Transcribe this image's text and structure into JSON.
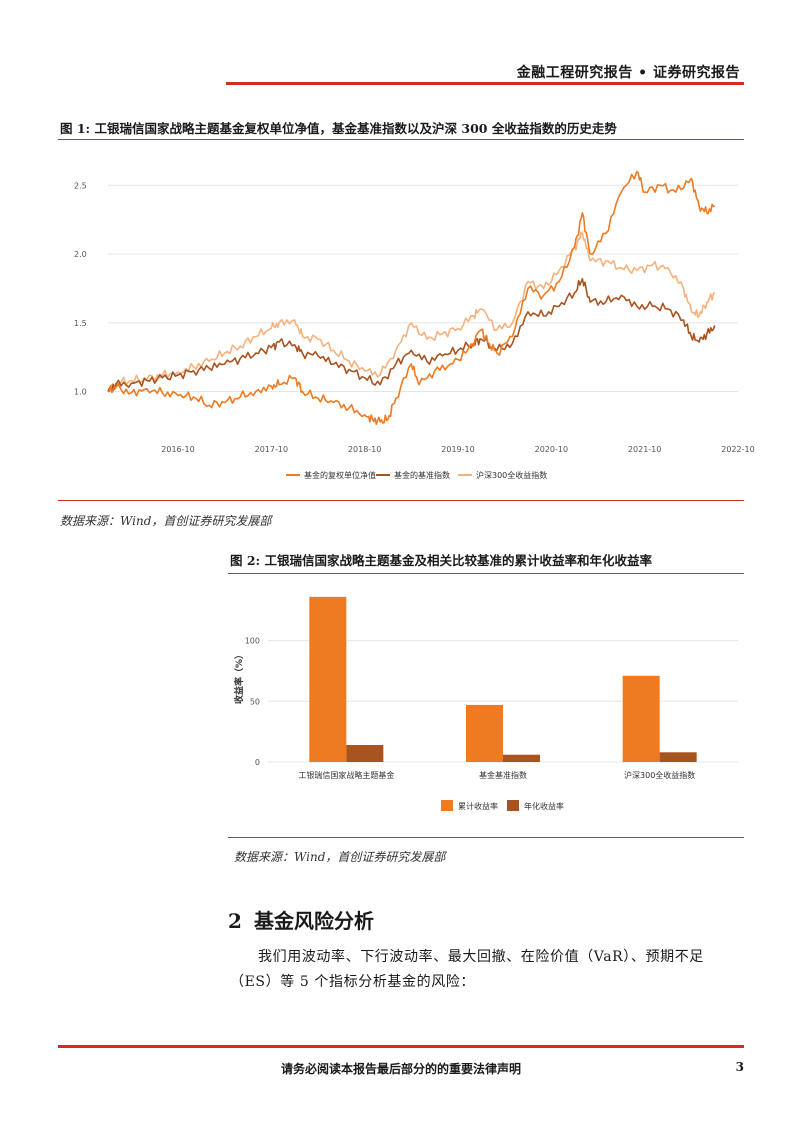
{
  "header": {
    "title": "金融工程研究报告 • 证券研究报告"
  },
  "figure1": {
    "title": "图 1: 工银瑞信国家战略主题基金复权单位净值，基金基准指数以及沪深 300 全收益指数的历史走势",
    "source": "数据来源：Wind，首创证券研究发展部"
  },
  "figure2": {
    "title": "图 2: 工银瑞信国家战略主题基金及相关比较基准的累计收益率和年化收益率",
    "source": "数据来源：Wind，首创证券研究发展部"
  },
  "chart_data": [
    {
      "type": "line",
      "title": "",
      "xlabel": "",
      "ylabel": "",
      "x_ticks": [
        "2016-10",
        "2017-10",
        "2018-10",
        "2019-10",
        "2020-10",
        "2021-10",
        "2022-10"
      ],
      "y_ticks": [
        1.0,
        1.5,
        2.0,
        2.5
      ],
      "ylim": [
        0.72,
        2.72
      ],
      "xlim": [
        "2016-01",
        "2022-10"
      ],
      "grid": true,
      "legend": "bottom",
      "series": [
        {
          "name": "基金的复权单位净值",
          "color": "#ee7a22",
          "points": [
            [
              "2016-01",
              1.0
            ],
            [
              "2016-02",
              1.03
            ],
            [
              "2016-04",
              0.99
            ],
            [
              "2016-06",
              1.02
            ],
            [
              "2016-08",
              0.99
            ],
            [
              "2016-10",
              0.97
            ],
            [
              "2016-12",
              0.96
            ],
            [
              "2017-02",
              0.9
            ],
            [
              "2017-04",
              0.92
            ],
            [
              "2017-06",
              0.96
            ],
            [
              "2017-08",
              1.0
            ],
            [
              "2017-10",
              1.04
            ],
            [
              "2017-11",
              1.05
            ],
            [
              "2018-01",
              1.1
            ],
            [
              "2018-02",
              1.0
            ],
            [
              "2018-04",
              0.95
            ],
            [
              "2018-06",
              0.92
            ],
            [
              "2018-08",
              0.88
            ],
            [
              "2018-10",
              0.83
            ],
            [
              "2018-11",
              0.8
            ],
            [
              "2018-12",
              0.78
            ],
            [
              "2019-01",
              0.8
            ],
            [
              "2019-02",
              0.95
            ],
            [
              "2019-04",
              1.2
            ],
            [
              "2019-05",
              1.05
            ],
            [
              "2019-07",
              1.15
            ],
            [
              "2019-09",
              1.2
            ],
            [
              "2019-11",
              1.28
            ],
            [
              "2020-01",
              1.45
            ],
            [
              "2020-02",
              1.35
            ],
            [
              "2020-03",
              1.28
            ],
            [
              "2020-05",
              1.4
            ],
            [
              "2020-07",
              1.75
            ],
            [
              "2020-09",
              1.7
            ],
            [
              "2020-11",
              1.8
            ],
            [
              "2021-01",
              2.05
            ],
            [
              "2021-02",
              2.3
            ],
            [
              "2021-03",
              2.0
            ],
            [
              "2021-05",
              2.15
            ],
            [
              "2021-07",
              2.45
            ],
            [
              "2021-09",
              2.6
            ],
            [
              "2021-10",
              2.45
            ],
            [
              "2021-12",
              2.5
            ],
            [
              "2022-02",
              2.45
            ],
            [
              "2022-04",
              2.55
            ],
            [
              "2022-05",
              2.35
            ],
            [
              "2022-06",
              2.3
            ],
            [
              "2022-07",
              2.35
            ]
          ]
        },
        {
          "name": "基金的基准指数",
          "color": "#a9531e",
          "points": [
            [
              "2016-01",
              1.0
            ],
            [
              "2016-02",
              1.05
            ],
            [
              "2016-04",
              1.06
            ],
            [
              "2016-06",
              1.08
            ],
            [
              "2016-08",
              1.1
            ],
            [
              "2016-10",
              1.12
            ],
            [
              "2016-12",
              1.15
            ],
            [
              "2017-02",
              1.17
            ],
            [
              "2017-04",
              1.2
            ],
            [
              "2017-06",
              1.24
            ],
            [
              "2017-08",
              1.28
            ],
            [
              "2017-10",
              1.32
            ],
            [
              "2017-11",
              1.36
            ],
            [
              "2018-01",
              1.34
            ],
            [
              "2018-02",
              1.28
            ],
            [
              "2018-04",
              1.26
            ],
            [
              "2018-06",
              1.2
            ],
            [
              "2018-08",
              1.16
            ],
            [
              "2018-10",
              1.1
            ],
            [
              "2018-12",
              1.05
            ],
            [
              "2019-02",
              1.2
            ],
            [
              "2019-04",
              1.3
            ],
            [
              "2019-06",
              1.22
            ],
            [
              "2019-08",
              1.26
            ],
            [
              "2019-10",
              1.3
            ],
            [
              "2019-12",
              1.35
            ],
            [
              "2020-01",
              1.38
            ],
            [
              "2020-03",
              1.3
            ],
            [
              "2020-05",
              1.35
            ],
            [
              "2020-07",
              1.58
            ],
            [
              "2020-09",
              1.55
            ],
            [
              "2020-11",
              1.62
            ],
            [
              "2021-01",
              1.72
            ],
            [
              "2021-02",
              1.82
            ],
            [
              "2021-03",
              1.65
            ],
            [
              "2021-05",
              1.65
            ],
            [
              "2021-07",
              1.7
            ],
            [
              "2021-09",
              1.62
            ],
            [
              "2021-11",
              1.62
            ],
            [
              "2022-01",
              1.6
            ],
            [
              "2022-03",
              1.52
            ],
            [
              "2022-04",
              1.4
            ],
            [
              "2022-05",
              1.36
            ],
            [
              "2022-06",
              1.42
            ],
            [
              "2022-07",
              1.48
            ]
          ]
        },
        {
          "name": "沪深300全收益指数",
          "color": "#f5b27e",
          "points": [
            [
              "2016-01",
              1.0
            ],
            [
              "2016-02",
              1.06
            ],
            [
              "2016-04",
              1.08
            ],
            [
              "2016-06",
              1.09
            ],
            [
              "2016-08",
              1.12
            ],
            [
              "2016-10",
              1.14
            ],
            [
              "2016-12",
              1.18
            ],
            [
              "2017-02",
              1.22
            ],
            [
              "2017-04",
              1.28
            ],
            [
              "2017-06",
              1.33
            ],
            [
              "2017-08",
              1.4
            ],
            [
              "2017-10",
              1.46
            ],
            [
              "2017-11",
              1.5
            ],
            [
              "2018-01",
              1.52
            ],
            [
              "2018-02",
              1.4
            ],
            [
              "2018-04",
              1.38
            ],
            [
              "2018-06",
              1.3
            ],
            [
              "2018-08",
              1.22
            ],
            [
              "2018-10",
              1.15
            ],
            [
              "2018-12",
              1.12
            ],
            [
              "2019-02",
              1.3
            ],
            [
              "2019-04",
              1.5
            ],
            [
              "2019-06",
              1.38
            ],
            [
              "2019-08",
              1.42
            ],
            [
              "2019-10",
              1.46
            ],
            [
              "2019-12",
              1.55
            ],
            [
              "2020-01",
              1.6
            ],
            [
              "2020-03",
              1.45
            ],
            [
              "2020-05",
              1.5
            ],
            [
              "2020-07",
              1.8
            ],
            [
              "2020-09",
              1.75
            ],
            [
              "2020-11",
              1.88
            ],
            [
              "2021-01",
              2.05
            ],
            [
              "2021-02",
              2.15
            ],
            [
              "2021-03",
              1.95
            ],
            [
              "2021-05",
              1.95
            ],
            [
              "2021-07",
              1.9
            ],
            [
              "2021-09",
              1.88
            ],
            [
              "2021-11",
              1.92
            ],
            [
              "2022-01",
              1.9
            ],
            [
              "2022-03",
              1.75
            ],
            [
              "2022-04",
              1.58
            ],
            [
              "2022-05",
              1.55
            ],
            [
              "2022-06",
              1.65
            ],
            [
              "2022-07",
              1.72
            ]
          ]
        }
      ]
    },
    {
      "type": "bar",
      "title": "",
      "xlabel": "",
      "ylabel": "收益率（%）",
      "categories": [
        "工银瑞信国家战略主题基金",
        "基金基准指数",
        "沪深300全收益指数"
      ],
      "y_ticks": [
        0,
        50,
        100
      ],
      "ylim": [
        0,
        140
      ],
      "grid": true,
      "legend": "bottom",
      "series": [
        {
          "name": "累计收益率",
          "color": "#ee7a22",
          "values": [
            136,
            47,
            71
          ]
        },
        {
          "name": "年化收益率",
          "color": "#a9531e",
          "values": [
            14,
            6,
            8
          ]
        }
      ]
    }
  ],
  "section": {
    "number": "2",
    "title": "基金风险分析",
    "paragraph": "我们用波动率、下行波动率、最大回撤、在险价值（VaR）、预期不足（ES）等 5 个指标分析基金的风险："
  },
  "footer": {
    "notice": "请务必阅读本报告最后部分的的重要法律声明",
    "page_number": "3"
  }
}
